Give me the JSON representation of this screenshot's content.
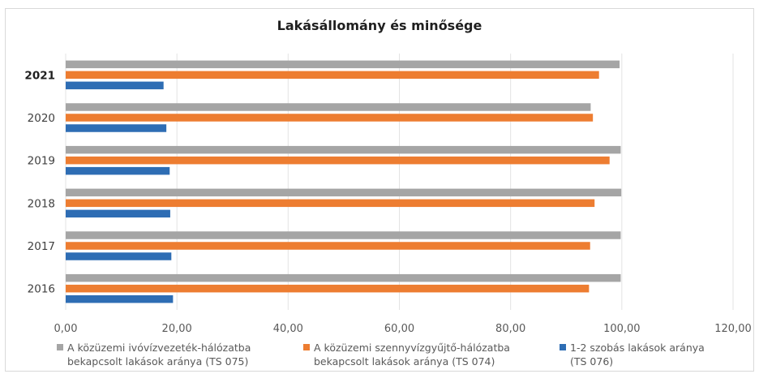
{
  "chart_data": {
    "type": "bar",
    "orientation": "horizontal",
    "title": "Lakásállomány és minősége",
    "categories": [
      "2021",
      "2020",
      "2019",
      "2018",
      "2017",
      "2016"
    ],
    "series": [
      {
        "name": "A közüzemi ivóvízvezeték-hálózatba bekapcsolt lakások aránya (TS 075)",
        "name_line1": "A közüzemi ivóvízvezeték-hálózatba",
        "name_line2": "bekapcsolt lakások aránya (TS 075)",
        "color": "#a5a5a5",
        "values": [
          99.6,
          94.4,
          99.8,
          99.9,
          99.8,
          99.8
        ]
      },
      {
        "name": "A közüzemi szennyvízgyűjtő-hálózatba bekapcsolt lakások aránya (TS 074)",
        "name_line1": "A közüzemi szennyvízgyűjtő-hálózatba",
        "name_line2": "bekapcsolt lakások aránya (TS 074)",
        "color": "#ed7d31",
        "values": [
          95.9,
          94.8,
          97.8,
          95.1,
          94.3,
          94.1
        ]
      },
      {
        "name": "1-2 szobás lakások aránya (TS 076)",
        "name_line1": "1-2 szobás lakások aránya",
        "name_line2": "(TS 076)",
        "color": "#2e6db4",
        "values": [
          17.6,
          18.1,
          18.7,
          18.8,
          19.0,
          19.3
        ]
      }
    ],
    "xlim": [
      0,
      120
    ],
    "xticks": [
      "0,00",
      "20,00",
      "40,00",
      "60,00",
      "80,00",
      "100,00",
      "120,00"
    ],
    "grid": "vertical",
    "legend_position": "bottom"
  }
}
